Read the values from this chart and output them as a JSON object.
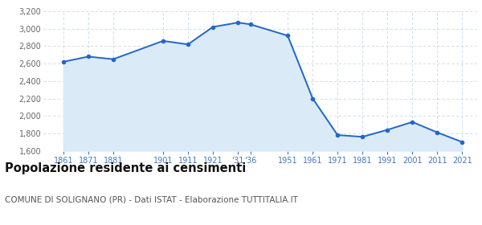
{
  "years": [
    1861,
    1871,
    1881,
    1901,
    1911,
    1921,
    1931,
    1936,
    1951,
    1961,
    1971,
    1981,
    1991,
    2001,
    2011,
    2021
  ],
  "population": [
    2620,
    2680,
    2650,
    2860,
    2820,
    3020,
    3070,
    3050,
    2920,
    2200,
    1780,
    1760,
    1840,
    1930,
    1810,
    1700
  ],
  "xtick_positions": [
    1861,
    1871,
    1881,
    1901,
    1911,
    1921,
    1931,
    1936,
    1951,
    1961,
    1971,
    1981,
    1991,
    2001,
    2011,
    2021
  ],
  "xtick_labels": [
    "1861",
    "1871",
    "1881",
    "1901",
    "1911",
    "1921",
    "‘31",
    "‘36",
    "1951",
    "1961",
    "1971",
    "1981",
    "1991",
    "2001",
    "2011",
    "2021"
  ],
  "ylim": [
    1600,
    3200
  ],
  "yticks": [
    1600,
    1800,
    2000,
    2200,
    2400,
    2600,
    2800,
    3000,
    3200
  ],
  "xlim_left": 1853,
  "xlim_right": 2027,
  "line_color": "#2266cc",
  "fill_color": "#daeaf7",
  "marker_color": "#2266cc",
  "bg_color": "#ffffff",
  "grid_color": "#c8d8e8",
  "title": "Popolazione residente ai censimenti",
  "subtitle": "COMUNE DI SOLIGNANO (PR) - Dati ISTAT - Elaborazione TUTTITALIA.IT",
  "title_fontsize": 10.5,
  "subtitle_fontsize": 7.5,
  "tick_label_color": "#4477bb",
  "ytick_label_color": "#666666"
}
